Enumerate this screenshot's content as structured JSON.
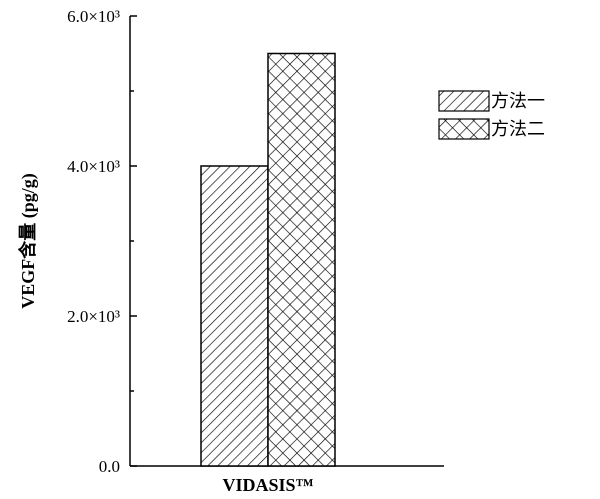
{
  "chart_data": {
    "type": "bar",
    "categories": [
      "VIDASIS™"
    ],
    "series": [
      {
        "name": "方法一",
        "values": [
          4000
        ],
        "pattern": "diagonal-hatch"
      },
      {
        "name": "方法二",
        "values": [
          5500
        ],
        "pattern": "crosshatch"
      }
    ],
    "title": "",
    "xlabel": "",
    "ylabel": "VEGF含量 (pg/g)",
    "ylim": [
      0,
      6000
    ],
    "yticks": [
      {
        "value": 0,
        "label": "0.0"
      },
      {
        "value": 2000,
        "label": "2.0×10³"
      },
      {
        "value": 4000,
        "label": "4.0×10³"
      },
      {
        "value": 6000,
        "label": "6.0×10³"
      }
    ],
    "grid": false,
    "legend_position": "top-right",
    "colors": {
      "stroke": "#000000",
      "fill": "#ffffff"
    }
  }
}
